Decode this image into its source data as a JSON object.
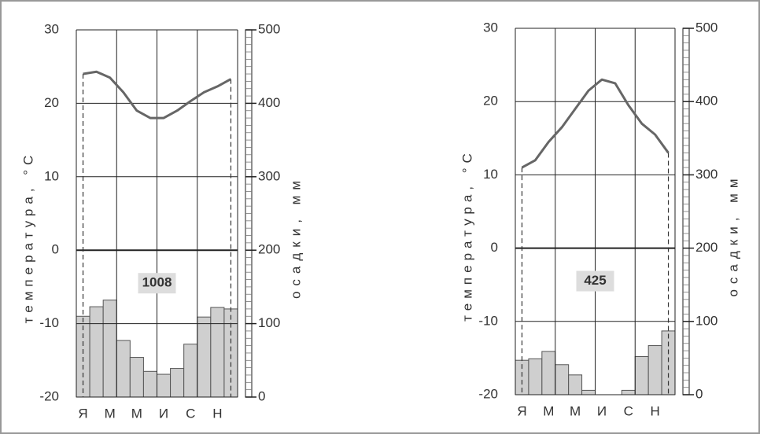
{
  "chart_data": [
    {
      "type": "climate",
      "categories": [
        "Я",
        null,
        "М",
        null,
        "М",
        null,
        "И",
        null,
        "С",
        null,
        "Н",
        null
      ],
      "series": [
        {
          "axis": "y",
          "color": "#666666",
          "values": [
            24,
            24.3,
            23.5,
            21.5,
            19,
            18,
            18,
            19,
            20.3,
            21.5,
            22.3,
            23.3
          ]
        },
        {
          "axis": "y2",
          "color": "#cfcfcf",
          "values": [
            110,
            123,
            132,
            77,
            54,
            35,
            31,
            39,
            72,
            109,
            122,
            120
          ]
        }
      ],
      "ylim": [
        -20,
        30
      ],
      "yticks": [
        30,
        20,
        10,
        0,
        -10,
        -20
      ],
      "y2lim": [
        0,
        500
      ],
      "y2ticks": [
        500,
        400,
        300,
        200,
        100,
        0
      ],
      "ylabel": "температура, °С",
      "y2label": "осадки, мм",
      "annotation": "1008",
      "grid": true
    },
    {
      "type": "climate",
      "categories": [
        "Я",
        null,
        "М",
        null,
        "М",
        null,
        "И",
        null,
        "С",
        null,
        "Н",
        null
      ],
      "series": [
        {
          "axis": "y",
          "color": "#666666",
          "values": [
            11,
            12,
            14.5,
            16.5,
            19,
            21.5,
            23,
            22.5,
            19.5,
            17,
            15.5,
            13
          ]
        },
        {
          "axis": "y2",
          "color": "#cfcfcf",
          "values": [
            47,
            49,
            59,
            41,
            27,
            6,
            0,
            0,
            6,
            52,
            67,
            87
          ]
        }
      ],
      "ylim": [
        -20,
        30
      ],
      "yticks": [
        30,
        20,
        10,
        0,
        -10,
        -20
      ],
      "y2lim": [
        0,
        500
      ],
      "y2ticks": [
        500,
        400,
        300,
        200,
        100,
        0
      ],
      "ylabel": "температура, °С",
      "y2label": "осадки, мм",
      "annotation": "425",
      "grid": true
    }
  ]
}
